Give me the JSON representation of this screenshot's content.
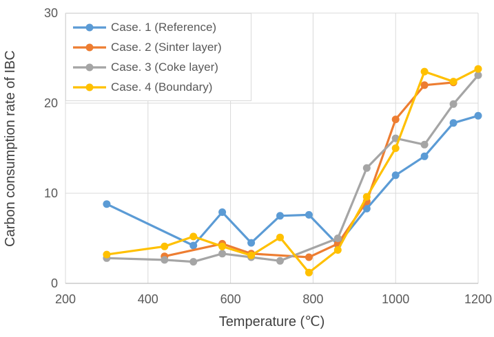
{
  "chart_data": {
    "type": "line",
    "title": "",
    "xlabel": "Temperature (℃)",
    "ylabel": "Carbon consumption rate of IBC",
    "xlim": [
      200,
      1200
    ],
    "ylim": [
      0,
      30
    ],
    "x_ticks": [
      200,
      400,
      600,
      800,
      1000,
      1200
    ],
    "y_ticks": [
      0,
      10,
      20,
      30
    ],
    "grid": true,
    "legend_position": "top-left-inside",
    "series": [
      {
        "name": "Case. 1 (Reference)",
        "color": "#5B9BD5",
        "points": [
          [
            300,
            8.8
          ],
          [
            510,
            4.2
          ],
          [
            580,
            7.9
          ],
          [
            650,
            4.5
          ],
          [
            720,
            7.5
          ],
          [
            790,
            7.6
          ],
          [
            860,
            4.3
          ],
          [
            930,
            8.3
          ],
          [
            1000,
            12.0
          ],
          [
            1070,
            14.1
          ],
          [
            1140,
            17.8
          ],
          [
            1200,
            18.6
          ]
        ]
      },
      {
        "name": "Case. 2 (Sinter layer)",
        "color": "#ED7D31",
        "points": [
          [
            440,
            3.0
          ],
          [
            580,
            4.4
          ],
          [
            650,
            3.3
          ],
          [
            790,
            2.9
          ],
          [
            860,
            4.4
          ],
          [
            930,
            9.1
          ],
          [
            1000,
            18.2
          ],
          [
            1070,
            22.0
          ],
          [
            1140,
            22.3
          ]
        ]
      },
      {
        "name": "Case. 3 (Coke layer)",
        "color": "#A5A5A5",
        "points": [
          [
            300,
            2.8
          ],
          [
            440,
            2.6
          ],
          [
            510,
            2.4
          ],
          [
            580,
            3.3
          ],
          [
            650,
            2.9
          ],
          [
            720,
            2.5
          ],
          [
            860,
            5.0
          ],
          [
            930,
            12.8
          ],
          [
            1000,
            16.1
          ],
          [
            1070,
            15.4
          ],
          [
            1140,
            19.9
          ],
          [
            1200,
            23.1
          ]
        ]
      },
      {
        "name": "Case. 4 (Boundary)",
        "color": "#FFC000",
        "points": [
          [
            300,
            3.2
          ],
          [
            440,
            4.1
          ],
          [
            510,
            5.2
          ],
          [
            580,
            4.1
          ],
          [
            650,
            3.1
          ],
          [
            720,
            5.1
          ],
          [
            790,
            1.2
          ],
          [
            860,
            3.7
          ],
          [
            930,
            9.6
          ],
          [
            1000,
            15.0
          ],
          [
            1070,
            23.5
          ],
          [
            1140,
            22.4
          ],
          [
            1200,
            23.8
          ]
        ]
      }
    ]
  },
  "theme": {
    "gridline_color": "#D9D9D9",
    "axis_line_color": "#BFBFBF",
    "tick_label_color": "#595959",
    "axis_title_color": "#3F3F3F",
    "background": "#FFFFFF"
  }
}
